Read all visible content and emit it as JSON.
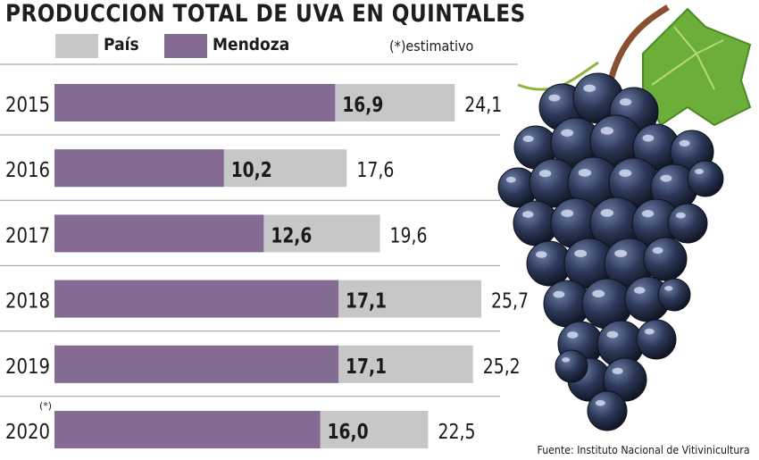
{
  "chart_data": {
    "type": "bar",
    "orientation": "horizontal",
    "overlapping": true,
    "title": "PRODUCCION TOTAL DE UVA EN QUINTALES",
    "categories": [
      "2015",
      "2016",
      "2017",
      "2018",
      "2019",
      "2020"
    ],
    "category_marks": [
      "",
      "",
      "",
      "",
      "",
      "(*)"
    ],
    "series": [
      {
        "name": "País",
        "color": "#c7c7c9",
        "values": [
          24.1,
          17.6,
          19.6,
          25.7,
          25.2,
          22.5
        ],
        "labels": [
          "24,1",
          "17,6",
          "19,6",
          "25,7",
          "25,2",
          "22,5"
        ]
      },
      {
        "name": "Mendoza",
        "color": "#846b93",
        "values": [
          16.9,
          10.2,
          12.6,
          17.1,
          17.1,
          16.0
        ],
        "labels": [
          "16,9",
          "10,2",
          "12,6",
          "17,1",
          "17,1",
          "16,0"
        ]
      }
    ],
    "xlim": [
      0,
      25.7
    ],
    "grid": false,
    "legend_position": "top-left"
  },
  "note": "(*)estimativo",
  "source": "Fuente: Instituto Nacional de Vitivinicultura",
  "image": "grape-bunch-icon"
}
